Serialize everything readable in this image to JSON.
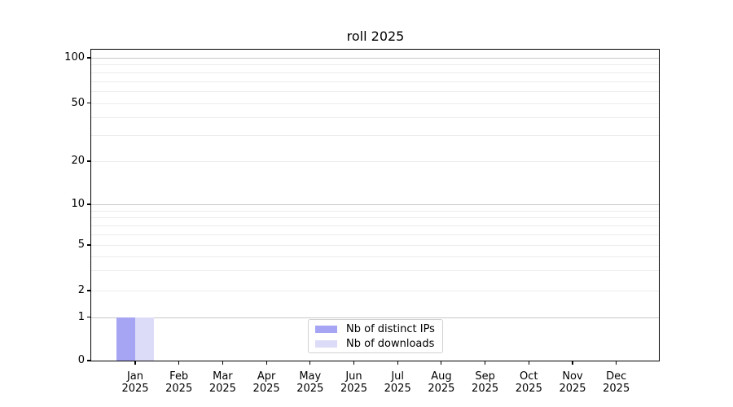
{
  "chart_data": {
    "type": "bar",
    "title": "roll 2025",
    "categories": [
      "Jan 2025",
      "Feb 2025",
      "Mar 2025",
      "Apr 2025",
      "May 2025",
      "Jun 2025",
      "Jul 2025",
      "Aug 2025",
      "Sep 2025",
      "Oct 2025",
      "Nov 2025",
      "Dec 2025"
    ],
    "series": [
      {
        "name": "Nb of distinct IPs",
        "color": "#a5a5f3",
        "values": [
          1,
          0,
          0,
          0,
          0,
          0,
          0,
          0,
          0,
          0,
          0,
          0
        ]
      },
      {
        "name": "Nb of downloads",
        "color": "#dcdcf8",
        "values": [
          1,
          0,
          0,
          0,
          0,
          0,
          0,
          0,
          0,
          0,
          0,
          0
        ]
      }
    ],
    "y_ticks": [
      0,
      1,
      2,
      5,
      10,
      20,
      50,
      100
    ],
    "y_minor_ticks": [
      3,
      4,
      6,
      7,
      8,
      9,
      30,
      40,
      60,
      70,
      80,
      90
    ],
    "y_major_grid_values": [
      1,
      10,
      100
    ],
    "ylim": [
      0,
      110
    ],
    "yscale": "symlog",
    "xlabel": "",
    "ylabel": "",
    "grid": true,
    "legend_position": "lower center"
  },
  "colors": {
    "major_grid": "#c8c8c8",
    "minor_grid": "#ececec",
    "spine": "#000000",
    "background": "#ffffff"
  }
}
